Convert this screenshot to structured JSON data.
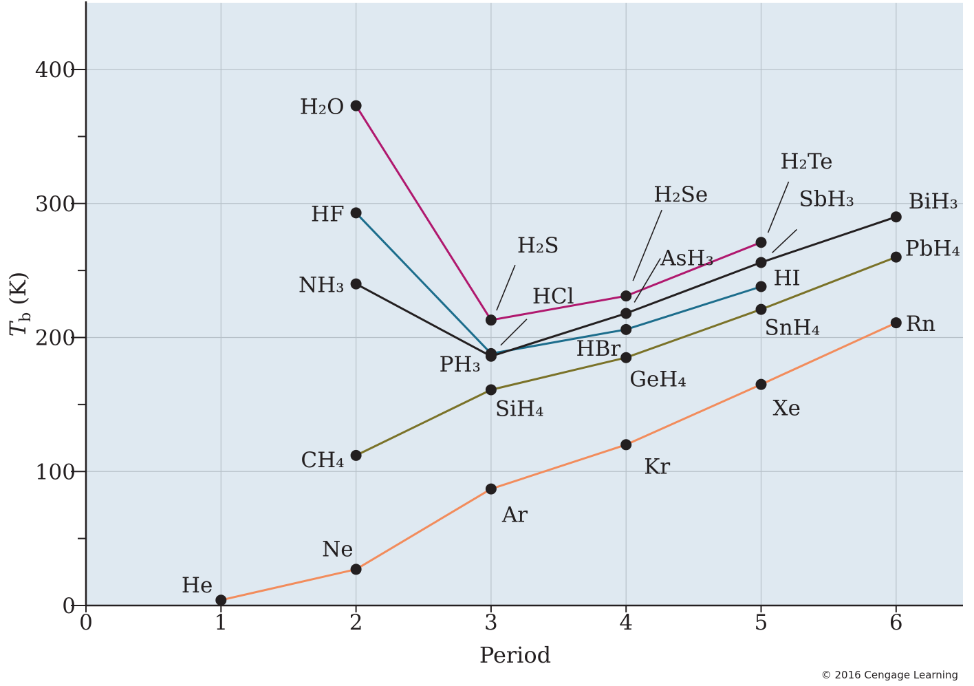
{
  "chart_data": {
    "type": "line",
    "xlabel": "Period",
    "ylabel": {
      "symbol": "T",
      "subscript": "b",
      "unit": " (K)"
    },
    "xlim": [
      0,
      6.5
    ],
    "ylim": [
      0,
      450
    ],
    "x_ticks": [
      0,
      1,
      2,
      3,
      4,
      5,
      6
    ],
    "y_ticks_labeled": [
      0,
      100,
      200,
      300,
      400
    ],
    "y_ticks_minor": [
      50,
      150,
      250,
      350
    ],
    "grid": true,
    "legend": "none (series labeled directly at points)",
    "background": "#dfe9f1",
    "grid_color": "#b7c1c9",
    "axis_color": "#231f20",
    "copyright": "© 2016 Cengage Learning",
    "series": [
      {
        "color": "#b0186e",
        "points": [
          {
            "x": 2,
            "y": 373,
            "label": "H₂O"
          },
          {
            "x": 3,
            "y": 213,
            "label": "H₂S"
          },
          {
            "x": 4,
            "y": 231,
            "label": "H₂Se"
          },
          {
            "x": 5,
            "y": 271,
            "label": "H₂Te"
          }
        ]
      },
      {
        "color": "#1c6d8c",
        "points": [
          {
            "x": 2,
            "y": 293,
            "label": "HF"
          },
          {
            "x": 3,
            "y": 188,
            "label": "HCl"
          },
          {
            "x": 4,
            "y": 206,
            "label": "HBr"
          },
          {
            "x": 5,
            "y": 238,
            "label": "HI"
          }
        ]
      },
      {
        "color": "#231f20",
        "points": [
          {
            "x": 2,
            "y": 240,
            "label": "NH₃"
          },
          {
            "x": 3,
            "y": 186,
            "label": "PH₃"
          },
          {
            "x": 4,
            "y": 218,
            "label": "AsH₃"
          },
          {
            "x": 5,
            "y": 256,
            "label": "SbH₃"
          },
          {
            "x": 6,
            "y": 290,
            "label": "BiH₃"
          }
        ]
      },
      {
        "color": "#7a7228",
        "points": [
          {
            "x": 2,
            "y": 112,
            "label": "CH₄"
          },
          {
            "x": 3,
            "y": 161,
            "label": "SiH₄"
          },
          {
            "x": 4,
            "y": 185,
            "label": "GeH₄"
          },
          {
            "x": 5,
            "y": 221,
            "label": "SnH₄"
          },
          {
            "x": 6,
            "y": 260,
            "label": "PbH₄"
          }
        ]
      },
      {
        "color": "#f28c5c",
        "points": [
          {
            "x": 1,
            "y": 4,
            "label": "He"
          },
          {
            "x": 2,
            "y": 27,
            "label": "Ne"
          },
          {
            "x": 3,
            "y": 87,
            "label": "Ar"
          },
          {
            "x": 4,
            "y": 120,
            "label": "Kr"
          },
          {
            "x": 5,
            "y": 165,
            "label": "Xe"
          },
          {
            "x": 6,
            "y": 211,
            "label": "Rn"
          }
        ]
      }
    ]
  }
}
